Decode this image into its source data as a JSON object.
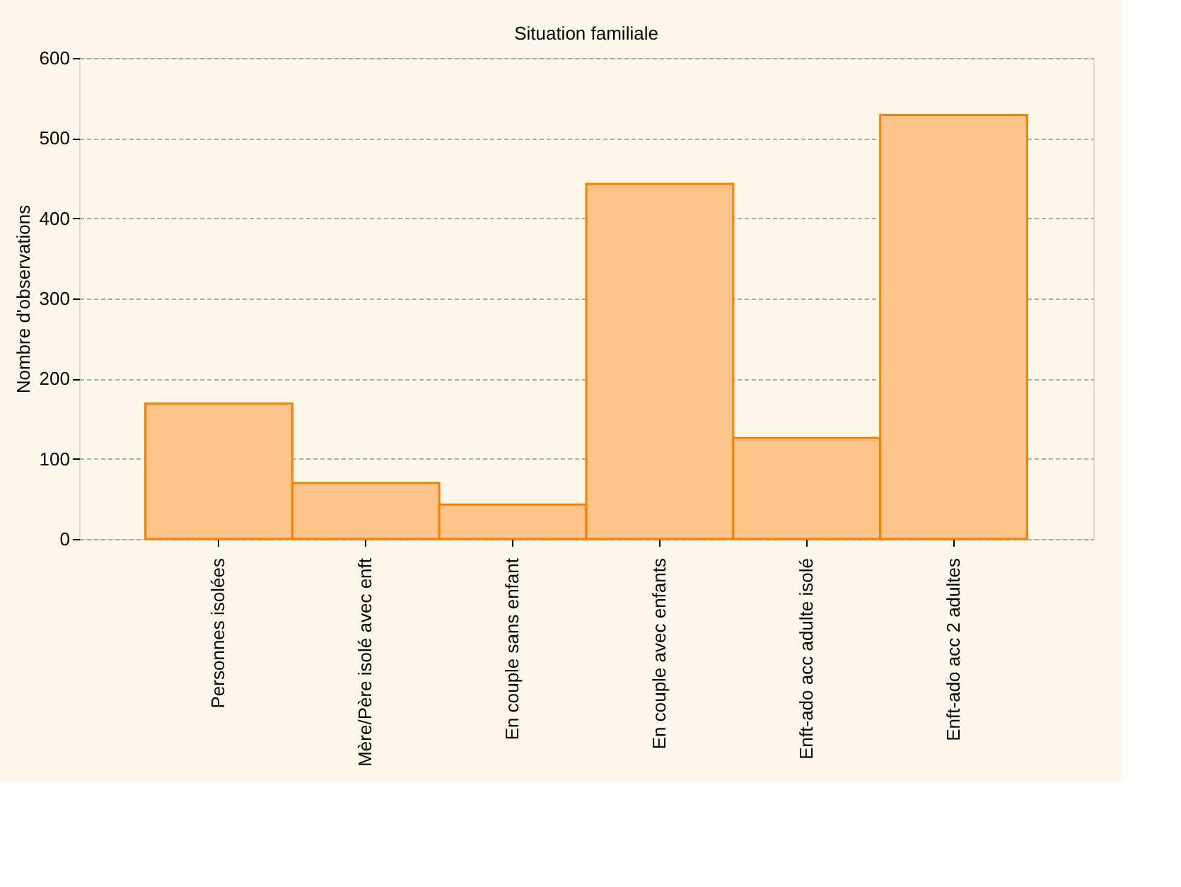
{
  "chart_data": {
    "type": "bar",
    "title": "Situation familiale",
    "ylabel": "Nombre d'observations",
    "categories": [
      "Personnes isolées",
      "Mère/Père isolé avec enft",
      "En couple sans enfant",
      "En couple avec enfants",
      "Enft-ado acc adulte isolé",
      "Enft-ado acc 2 adultes"
    ],
    "values": [
      169,
      70,
      43,
      443,
      126,
      529
    ],
    "color": "#ffc48a",
    "ylim": [
      0,
      600
    ],
    "yticks": [
      0,
      100,
      200,
      300,
      400,
      500,
      600
    ],
    "grid": "y"
  }
}
